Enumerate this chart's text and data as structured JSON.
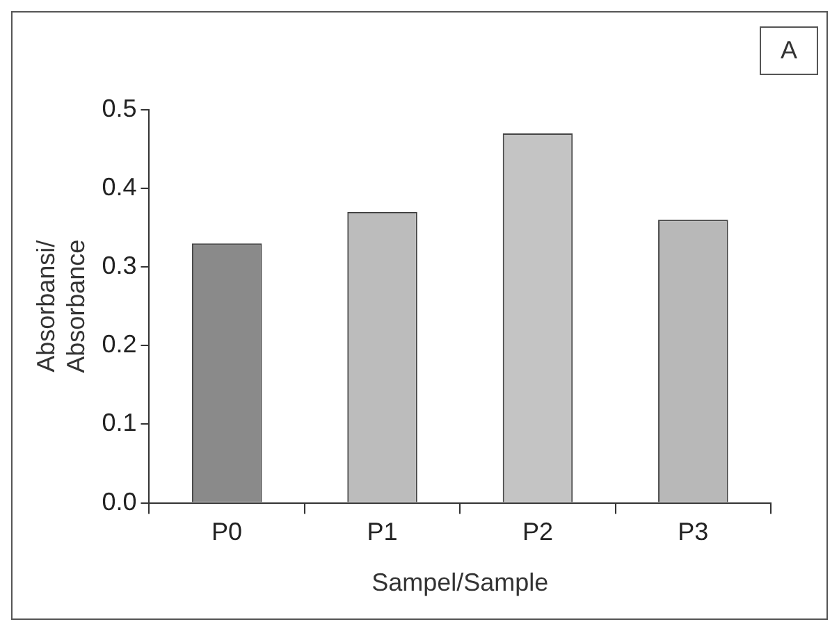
{
  "chart_data": {
    "type": "bar",
    "xlabel": "Sampel/Sample",
    "ylabel": "Absorbansi/Absorbance",
    "categories": [
      "P0",
      "P1",
      "P2",
      "P3"
    ],
    "values": [
      0.33,
      0.37,
      0.47,
      0.36
    ],
    "colors": [
      "#8a8a8a",
      "#bcbcbc",
      "#c4c4c4",
      "#b8b8b8"
    ],
    "ylim": [
      0,
      0.5
    ],
    "yticks": [
      {
        "value": 0,
        "label": "0.0"
      },
      0.1,
      0.2,
      0.3,
      0.4,
      0.5
    ],
    "grid": false,
    "legend": false,
    "annotations": [
      "A"
    ]
  }
}
